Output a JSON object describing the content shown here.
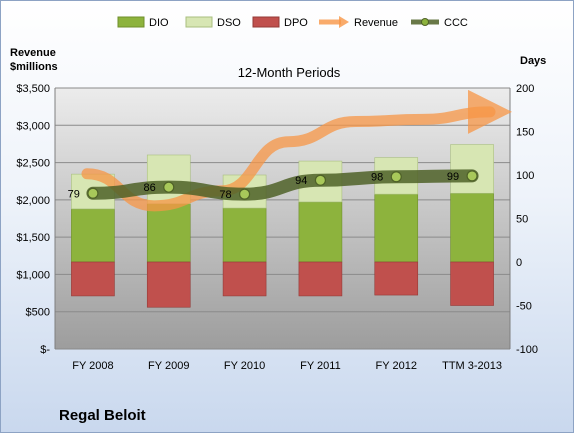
{
  "chart_data": {
    "type": "bar",
    "title": "12-Month Periods",
    "company": "Regal Beloit",
    "left_axis_label": [
      "Revenue",
      "$millions"
    ],
    "right_axis_label": "Days",
    "categories": [
      "FY 2008",
      "FY 2009",
      "FY 2010",
      "FY 2011",
      "FY 2012",
      "TTM 3-2013"
    ],
    "left_ticks": [
      "$-",
      "$500",
      "$1,000",
      "$1,500",
      "$2,000",
      "$2,500",
      "$3,000",
      "$3,500"
    ],
    "right_ticks": [
      "-100",
      "-50",
      "0",
      "50",
      "100",
      "150",
      "200"
    ],
    "ylim_right": [
      -100,
      200
    ],
    "ylim_left": [
      0,
      3500
    ],
    "series": [
      {
        "name": "DIO",
        "values": [
          61,
          67,
          62,
          69,
          78,
          79
        ]
      },
      {
        "name": "DSO",
        "values": [
          40,
          56,
          38,
          47,
          42,
          56
        ]
      },
      {
        "name": "DPO",
        "values": [
          -39,
          -52,
          -39,
          -39,
          -38,
          -50
        ]
      },
      {
        "name": "CCC",
        "values": [
          79,
          86,
          78,
          94,
          98,
          99
        ]
      }
    ],
    "revenue_series_name": "Revenue",
    "revenue_trend_points": [
      2350,
      1920,
      2120,
      2780,
      3050,
      3080,
      3180
    ],
    "legend_position": "top",
    "grid": true,
    "colors": {
      "DIO": "#8db33d",
      "DSO": "#d7e6b3",
      "DPO": "#c0504d",
      "Revenue": "#f79646",
      "CCC": "#4f6228"
    }
  }
}
